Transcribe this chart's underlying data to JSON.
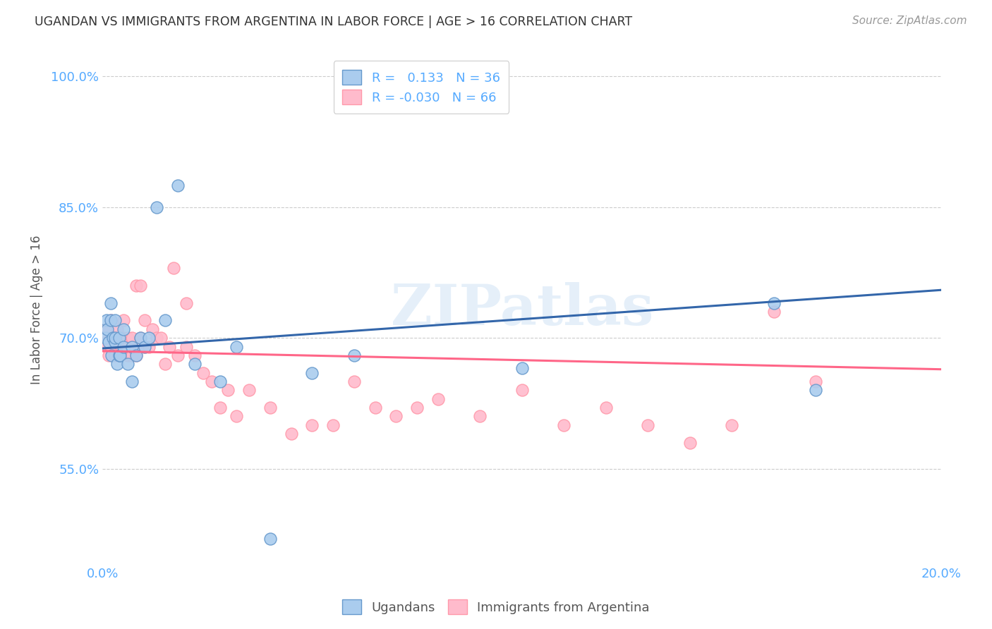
{
  "title": "UGANDAN VS IMMIGRANTS FROM ARGENTINA IN LABOR FORCE | AGE > 16 CORRELATION CHART",
  "source": "Source: ZipAtlas.com",
  "ylabel": "In Labor Force | Age > 16",
  "xlim": [
    0.0,
    0.2
  ],
  "ylim": [
    0.44,
    1.025
  ],
  "yticks": [
    0.55,
    0.7,
    0.85,
    1.0
  ],
  "ytick_labels": [
    "55.0%",
    "70.0%",
    "85.0%",
    "100.0%"
  ],
  "xticks": [
    0.0,
    0.05,
    0.1,
    0.15,
    0.2
  ],
  "xtick_labels": [
    "0.0%",
    "",
    "",
    "",
    "20.0%"
  ],
  "watermark": "ZIPatlas",
  "legend_r1": "R =   0.133   N = 36",
  "legend_r2": "R = -0.030   N = 66",
  "blue_color": "#6699CC",
  "pink_color": "#FF99AA",
  "blue_line_color": "#3366AA",
  "pink_line_color": "#FF6688",
  "blue_scatter_face": "#AACCEE",
  "pink_scatter_face": "#FFBBCC",
  "axis_color": "#55AAFF",
  "background_color": "#FFFFFF",
  "ugandans_x": [
    0.0008,
    0.001,
    0.0012,
    0.0015,
    0.002,
    0.002,
    0.0022,
    0.0025,
    0.003,
    0.003,
    0.003,
    0.0035,
    0.004,
    0.004,
    0.0042,
    0.005,
    0.005,
    0.006,
    0.007,
    0.007,
    0.008,
    0.009,
    0.01,
    0.011,
    0.013,
    0.015,
    0.018,
    0.022,
    0.028,
    0.032,
    0.04,
    0.05,
    0.06,
    0.1,
    0.16,
    0.17
  ],
  "ugandans_y": [
    0.7,
    0.72,
    0.71,
    0.695,
    0.74,
    0.72,
    0.68,
    0.7,
    0.695,
    0.7,
    0.72,
    0.67,
    0.68,
    0.7,
    0.68,
    0.69,
    0.71,
    0.67,
    0.65,
    0.69,
    0.68,
    0.7,
    0.69,
    0.7,
    0.85,
    0.72,
    0.875,
    0.67,
    0.65,
    0.69,
    0.47,
    0.66,
    0.68,
    0.665,
    0.74,
    0.64
  ],
  "argentina_x": [
    0.0008,
    0.001,
    0.001,
    0.0015,
    0.002,
    0.002,
    0.002,
    0.0025,
    0.003,
    0.003,
    0.003,
    0.0035,
    0.004,
    0.004,
    0.004,
    0.0045,
    0.005,
    0.005,
    0.005,
    0.006,
    0.006,
    0.006,
    0.007,
    0.007,
    0.007,
    0.008,
    0.008,
    0.009,
    0.009,
    0.01,
    0.01,
    0.011,
    0.012,
    0.013,
    0.014,
    0.015,
    0.016,
    0.017,
    0.018,
    0.02,
    0.02,
    0.022,
    0.024,
    0.026,
    0.028,
    0.03,
    0.032,
    0.035,
    0.04,
    0.045,
    0.05,
    0.055,
    0.06,
    0.065,
    0.07,
    0.075,
    0.08,
    0.09,
    0.1,
    0.11,
    0.12,
    0.13,
    0.14,
    0.15,
    0.16,
    0.17
  ],
  "argentina_y": [
    0.695,
    0.69,
    0.71,
    0.68,
    0.7,
    0.69,
    0.72,
    0.7,
    0.68,
    0.7,
    0.7,
    0.71,
    0.68,
    0.7,
    0.68,
    0.69,
    0.7,
    0.69,
    0.72,
    0.68,
    0.69,
    0.7,
    0.68,
    0.69,
    0.7,
    0.76,
    0.68,
    0.7,
    0.76,
    0.69,
    0.72,
    0.69,
    0.71,
    0.7,
    0.7,
    0.67,
    0.69,
    0.78,
    0.68,
    0.74,
    0.69,
    0.68,
    0.66,
    0.65,
    0.62,
    0.64,
    0.61,
    0.64,
    0.62,
    0.59,
    0.6,
    0.6,
    0.65,
    0.62,
    0.61,
    0.62,
    0.63,
    0.61,
    0.64,
    0.6,
    0.62,
    0.6,
    0.58,
    0.6,
    0.73,
    0.65
  ],
  "blue_trend_x0": 0.0,
  "blue_trend_y0": 0.688,
  "blue_trend_x1": 0.2,
  "blue_trend_y1": 0.755,
  "pink_trend_x0": 0.0,
  "pink_trend_y0": 0.685,
  "pink_trend_x1": 0.2,
  "pink_trend_y1": 0.664
}
